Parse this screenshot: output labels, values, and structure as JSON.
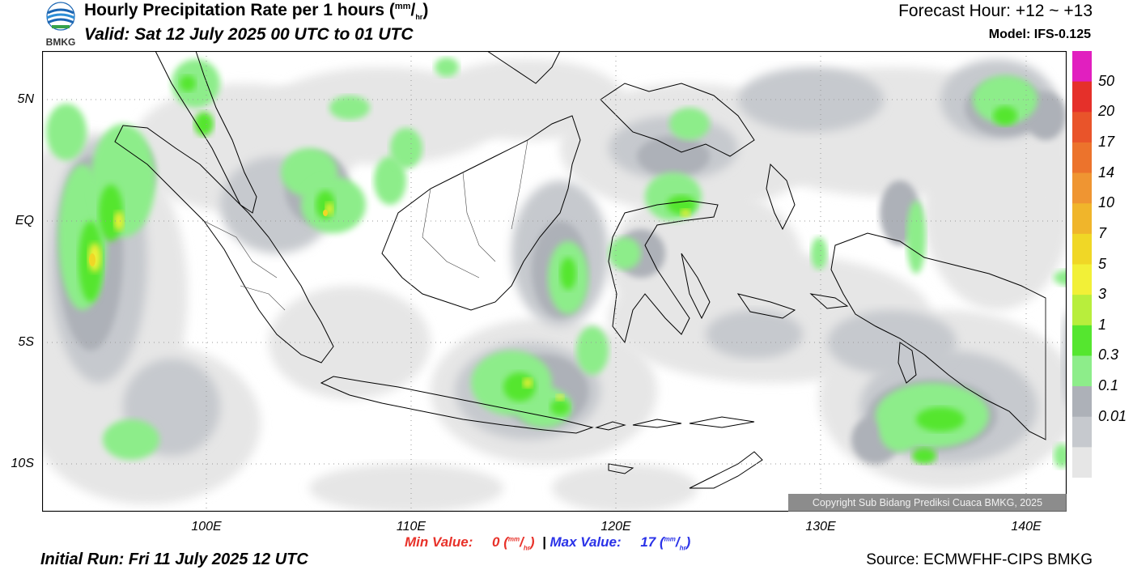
{
  "header": {
    "logo_text": "BMKG",
    "title_main": "Hourly Precipitation Rate per 1 hours (",
    "title_unit_num": "mm",
    "title_slash": "/",
    "title_unit_den": "hr",
    "title_close": ")",
    "valid": "Valid: Sat 12 July 2025 00 UTC to 01 UTC",
    "forecast_hour": "Forecast Hour: +12 ~ +13",
    "model": "Model: IFS-0.125"
  },
  "map": {
    "lat_labels": [
      "5N",
      "EQ",
      "5S",
      "10S"
    ],
    "lon_labels": [
      "100E",
      "110E",
      "120E",
      "130E",
      "140E"
    ],
    "lon_range": [
      92,
      142
    ],
    "lat_range": [
      7,
      -12.1
    ],
    "copyright": "Copyright Sub Bidang Prediksi Cuaca BMKG, 2025"
  },
  "colorbar": {
    "labels": [
      "50",
      "20",
      "17",
      "14",
      "10",
      "7",
      "5",
      "3",
      "1",
      "0.3",
      "0.1",
      "0.01"
    ],
    "colors": [
      "#e11fbf",
      "#e5302a",
      "#e9542a",
      "#ec732c",
      "#ef9532",
      "#f0b52b",
      "#f0d726",
      "#f2f037",
      "#b8ee3c",
      "#55e62f",
      "#8ded8a",
      "#adb1b8",
      "#c6c9ce",
      "#e6e6e6"
    ]
  },
  "stats": {
    "min_label": "Min Value:",
    "min_value": "0",
    "max_separator": "|",
    "max_label": "Max Value:",
    "max_value": "17",
    "unit_num": "mm",
    "unit_den": "hr"
  },
  "footer": {
    "initial_run": "Initial Run: Fri 11 July 2025 12 UTC",
    "source": "Source: ECMWFHF-CIPS BMKG"
  }
}
